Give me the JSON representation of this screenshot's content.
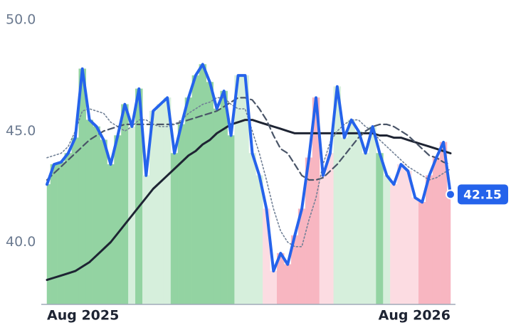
{
  "chart_data": {
    "type": "line",
    "categories": [
      "Aug 2025",
      null,
      null,
      null,
      null,
      null,
      null,
      null,
      null,
      null,
      null,
      null,
      null,
      null,
      null,
      null,
      null,
      null,
      null,
      null,
      null,
      null,
      null,
      null,
      null,
      null,
      null,
      null,
      null,
      null,
      null,
      null,
      null,
      null,
      null,
      null,
      null,
      null,
      null,
      null,
      null,
      null,
      null,
      null,
      null,
      null,
      null,
      null,
      null,
      null,
      null,
      null,
      null,
      null,
      null,
      null,
      null,
      "Aug 2026"
    ],
    "ylim": [
      37.2,
      50
    ],
    "yticks": [
      {
        "value": 50,
        "label": "50.0"
      },
      {
        "value": 45,
        "label": "45.0"
      },
      {
        "value": 40,
        "label": "40.0"
      }
    ],
    "grid": false,
    "series": [
      {
        "color": "#2563eb",
        "line_style": "solid",
        "values": [
          42.6,
          43.5,
          43.6,
          44.0,
          44.7,
          47.8,
          45.5,
          45.2,
          44.6,
          43.5,
          44.8,
          46.2,
          45.2,
          46.9,
          43.0,
          45.9,
          46.2,
          46.5,
          44.0,
          45.3,
          46.5,
          47.5,
          48.0,
          47.2,
          46.0,
          46.8,
          44.8,
          47.5,
          47.5,
          44.0,
          43.0,
          41.5,
          38.7,
          39.5,
          39.0,
          40.3,
          41.5,
          43.8,
          46.5,
          43.0,
          44.0,
          47.0,
          44.7,
          45.5,
          45.0,
          44.0,
          45.2,
          44.0,
          43.0,
          42.6,
          43.5,
          43.2,
          42.0,
          41.8,
          43.0,
          43.8,
          44.5,
          42.15
        ],
        "fill_colors": [
          "#93d3a2",
          "#93d3a2",
          "#93d3a2",
          "#93d3a2",
          "#93d3a2",
          "#93d3a2",
          "#93d3a2",
          "#93d3a2",
          "#93d3a2",
          "#93d3a2",
          "#93d3a2",
          "#93d3a2",
          "#d6efdc",
          "#93d3a2",
          "#d6efdc",
          "#d6efdc",
          "#d6efdc",
          "#d6efdc",
          "#93d3a2",
          "#93d3a2",
          "#93d3a2",
          "#93d3a2",
          "#93d3a2",
          "#93d3a2",
          "#93d3a2",
          "#93d3a2",
          "#93d3a2",
          "#d6efdc",
          "#d6efdc",
          "#d6efdc",
          "#d6efdc",
          "#fcdce2",
          "#fcdce2",
          "#f8b6c1",
          "#f8b6c1",
          "#f8b6c1",
          "#f8b6c1",
          "#f8b6c1",
          "#f8b6c1",
          "#fcdce2",
          "#fcdce2",
          "#d6efdc",
          "#d6efdc",
          "#d6efdc",
          "#d6efdc",
          "#d6efdc",
          "#d6efdc",
          "#93d3a2",
          "#d6efdc",
          "#fcdce2",
          "#fcdce2",
          "#fcdce2",
          "#fcdce2",
          "#f8b6c1",
          "#f8b6c1",
          "#f8b6c1",
          "#f8b6c1",
          "#f8b6c1"
        ]
      },
      {
        "color": "#1e2433",
        "line_style": "solid-slow",
        "values": [
          38.3,
          38.4,
          38.5,
          38.6,
          38.7,
          38.9,
          39.1,
          39.4,
          39.7,
          40.0,
          40.4,
          40.8,
          41.2,
          41.6,
          42.0,
          42.4,
          42.7,
          43.0,
          43.3,
          43.6,
          43.9,
          44.1,
          44.4,
          44.6,
          44.9,
          45.1,
          45.3,
          45.4,
          45.5,
          45.5,
          45.4,
          45.3,
          45.2,
          45.1,
          45.0,
          44.9,
          44.9,
          44.9,
          44.9,
          44.9,
          44.9,
          44.9,
          44.9,
          44.9,
          44.9,
          44.9,
          44.9,
          44.8,
          44.8,
          44.7,
          44.7,
          44.6,
          44.5,
          44.4,
          44.3,
          44.2,
          44.1,
          44.0
        ]
      },
      {
        "color": "#4a5568",
        "line_style": "dashed",
        "values": [
          42.8,
          43.1,
          43.4,
          43.7,
          44.0,
          44.3,
          44.6,
          44.8,
          45.0,
          45.1,
          45.2,
          45.3,
          45.3,
          45.3,
          45.3,
          45.3,
          45.3,
          45.3,
          45.3,
          45.4,
          45.5,
          45.6,
          45.7,
          45.8,
          45.9,
          46.1,
          46.3,
          46.5,
          46.5,
          46.4,
          46.0,
          45.5,
          44.8,
          44.2,
          44.0,
          43.5,
          43.0,
          42.8,
          42.8,
          42.9,
          43.2,
          43.5,
          43.9,
          44.3,
          44.7,
          45.0,
          45.2,
          45.3,
          45.3,
          45.2,
          45.0,
          44.8,
          44.5,
          44.2,
          43.9,
          43.8,
          43.6,
          43.5
        ]
      },
      {
        "color": "#718096",
        "line_style": "dotted",
        "values": [
          43.8,
          43.9,
          44.0,
          44.3,
          45.0,
          45.9,
          46.0,
          45.9,
          45.8,
          45.4,
          45.2,
          45.0,
          45.2,
          45.5,
          45.5,
          45.3,
          45.2,
          45.2,
          45.3,
          45.5,
          45.8,
          46.0,
          46.2,
          46.3,
          46.5,
          46.5,
          46.2,
          46.0,
          46.0,
          45.0,
          44.0,
          42.8,
          41.5,
          40.5,
          40.0,
          39.8,
          39.8,
          41.0,
          42.0,
          43.5,
          44.5,
          45.0,
          45.3,
          45.5,
          45.5,
          45.2,
          45.0,
          44.6,
          44.3,
          44.0,
          43.7,
          43.4,
          43.2,
          43.0,
          42.8,
          42.9,
          43.1,
          43.3
        ]
      }
    ]
  }
}
